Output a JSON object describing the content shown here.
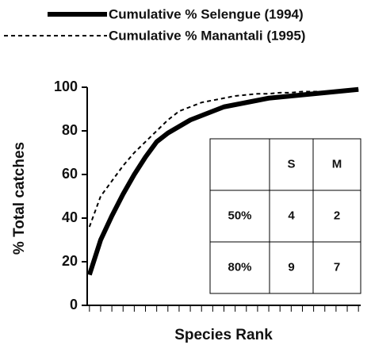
{
  "chart_data": {
    "type": "line",
    "x": [
      1,
      2,
      3,
      4,
      5,
      6,
      7,
      8,
      9,
      10,
      11,
      12,
      13,
      14,
      15,
      16,
      17,
      18,
      19,
      20,
      21,
      22,
      23,
      24,
      25
    ],
    "series": [
      {
        "name": "Cumulative % Selengue (1994)",
        "color": "#000000",
        "style": "solid",
        "values": [
          14,
          30,
          41,
          51,
          60,
          68,
          75,
          79,
          82,
          85,
          87,
          89,
          91,
          92,
          93,
          94,
          95,
          95.5,
          96,
          96.5,
          97,
          97.5,
          98,
          98.5,
          99
        ]
      },
      {
        "name": "Cumulative % Manantali (1995)",
        "color": "#000000",
        "style": "dashed",
        "values": [
          36,
          50,
          57,
          64,
          70,
          75,
          80,
          85,
          89,
          91,
          93,
          94,
          95,
          96,
          96.5,
          97,
          97,
          97.5,
          97.5,
          98,
          98,
          98,
          98.5,
          98.5,
          99
        ]
      }
    ],
    "xlabel": "Species Rank",
    "ylabel": "% Total catches",
    "xlim": [
      0.8,
      25.2
    ],
    "xticks": [
      1,
      2,
      3,
      4,
      5,
      6,
      7,
      8,
      9,
      10,
      11,
      12,
      13,
      14,
      15,
      16,
      17,
      18,
      19,
      20,
      21,
      22,
      23,
      24,
      25
    ],
    "ylim": [
      0,
      100
    ],
    "yticks": [
      0,
      20,
      40,
      60,
      80,
      100
    ],
    "grid": false
  },
  "table": {
    "header": [
      "S",
      "M"
    ],
    "rows": [
      [
        "50%",
        "4",
        "2"
      ],
      [
        "80%",
        "9",
        "7"
      ]
    ]
  }
}
